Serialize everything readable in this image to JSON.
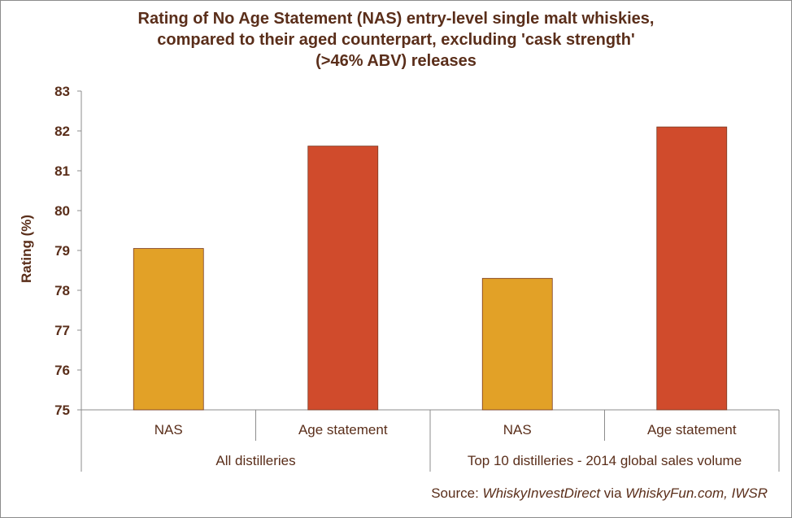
{
  "chart_data": {
    "type": "bar",
    "title_lines": [
      "Rating of No Age Statement (NAS) entry-level single malt whiskies,",
      "compared to their aged counterpart, excluding 'cask strength'",
      "(>46% ABV) releases"
    ],
    "ylabel": "Rating (%)",
    "ylim": [
      75,
      83
    ],
    "yticks": [
      "75",
      "76",
      "77",
      "78",
      "79",
      "80",
      "81",
      "82",
      "83"
    ],
    "groups": [
      {
        "label": "All distilleries",
        "categories": [
          "NAS",
          "Age statement"
        ],
        "values": [
          79.05,
          81.62
        ]
      },
      {
        "label": "Top 10 distilleries - 2014 global sales volume",
        "categories": [
          "NAS",
          "Age statement"
        ],
        "values": [
          78.3,
          82.1
        ]
      }
    ],
    "bar_colors": {
      "NAS": "#E2A127",
      "Age statement": "#D04B2C"
    },
    "grid": false
  },
  "source": {
    "prefix": "Source: ",
    "part1": "WhiskyInvestDirect",
    "via": " via ",
    "part2": "WhiskyFun.com, IWSR"
  }
}
